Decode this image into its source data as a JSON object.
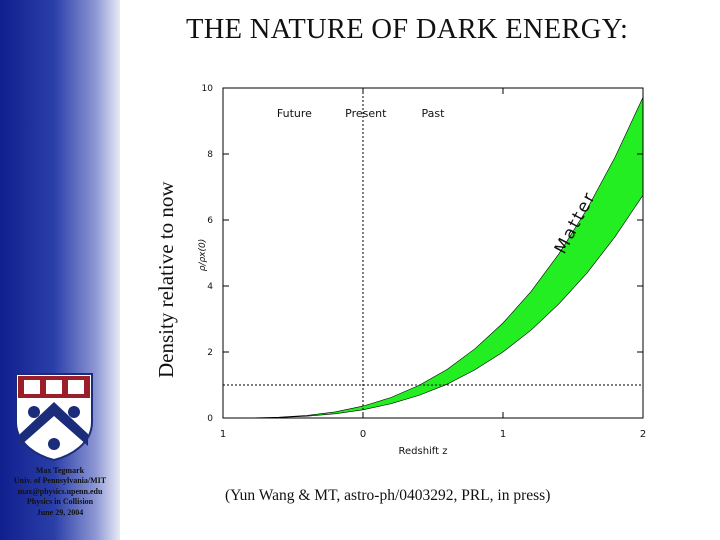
{
  "title": "THE NATURE OF DARK ENERGY:",
  "outer_ylabel": "Density relative to now",
  "citation": "(Yun Wang & MT, astro-ph/0403292, PRL, in press)",
  "author_block": [
    "Max Tegmark",
    "Univ. of Pennsylvania/MIT",
    "max@physics.upenn.edu",
    "Physics in Collision",
    "June 29, 2004"
  ],
  "colors": {
    "sidebar": "#1a2a98",
    "band_fill": "#22ee22",
    "crest_red": "#9a1f2a",
    "crest_blue": "#1a2c7a"
  },
  "chart_data": {
    "type": "area",
    "xlabel": "Redshift z",
    "ylabel": "ρ/ρx(0)",
    "xticks": [
      "1",
      "0",
      "1",
      "2"
    ],
    "yticks": [
      "0",
      "2",
      "4",
      "6",
      "8",
      "10"
    ],
    "xlim": [
      -1,
      2
    ],
    "ylim": [
      0,
      10
    ],
    "region_labels": [
      "Future",
      "Present",
      "Past"
    ],
    "band_label": "Matter",
    "reference_lines": {
      "present_z": 0,
      "density_one": 1
    },
    "band": {
      "name": "Matter",
      "z": [
        -1,
        -0.8,
        -0.6,
        -0.4,
        -0.2,
        0,
        0.2,
        0.4,
        0.6,
        0.8,
        1.0,
        1.2,
        1.4,
        1.6,
        1.8,
        2.0
      ],
      "lower": [
        0,
        0.002,
        0.016,
        0.054,
        0.128,
        0.25,
        0.432,
        0.686,
        1.02,
        1.46,
        2.0,
        2.66,
        3.46,
        4.39,
        5.49,
        6.75
      ],
      "upper": [
        0,
        0.003,
        0.023,
        0.078,
        0.185,
        0.36,
        0.622,
        0.988,
        1.47,
        2.1,
        2.88,
        3.83,
        4.98,
        6.33,
        7.9,
        9.72
      ]
    }
  }
}
